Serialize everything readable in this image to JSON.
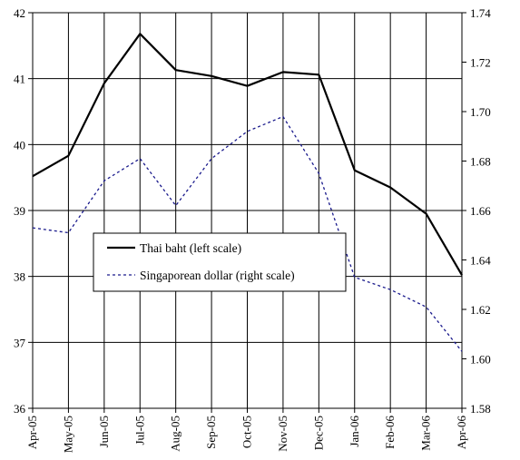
{
  "chart_data": {
    "type": "line",
    "title": "",
    "xlabel": "",
    "categories": [
      "Apr-05",
      "May-05",
      "Jun-05",
      "Jul-05",
      "Aug-05",
      "Sep-05",
      "Oct-05",
      "Nov-05",
      "Dec-05",
      "Jan-06",
      "Feb-06",
      "Mar-06",
      "Apr-06"
    ],
    "y_left": {
      "ylim": [
        36,
        42
      ],
      "ticks": [
        "36",
        "37",
        "38",
        "39",
        "40",
        "41",
        "42"
      ]
    },
    "y_right": {
      "ylim": [
        1.58,
        1.74
      ],
      "ticks": [
        "1.58",
        "1.60",
        "1.62",
        "1.64",
        "1.66",
        "1.68",
        "1.70",
        "1.72",
        "1.74"
      ]
    },
    "grid": true,
    "legend_position": "center-left",
    "series": [
      {
        "name": "Thai baht (left scale)",
        "axis": "left",
        "style": "solid",
        "color": "#000000",
        "values": [
          39.52,
          39.83,
          40.93,
          41.68,
          41.13,
          41.04,
          40.89,
          41.1,
          41.06,
          39.61,
          39.35,
          38.95,
          38.02
        ]
      },
      {
        "name": "Singaporean dollar (right scale)",
        "axis": "right",
        "style": "dashed",
        "color": "#1a1a8c",
        "values": [
          1.653,
          1.651,
          1.672,
          1.681,
          1.662,
          1.681,
          1.692,
          1.698,
          1.675,
          1.633,
          1.628,
          1.621,
          1.603
        ]
      }
    ]
  }
}
